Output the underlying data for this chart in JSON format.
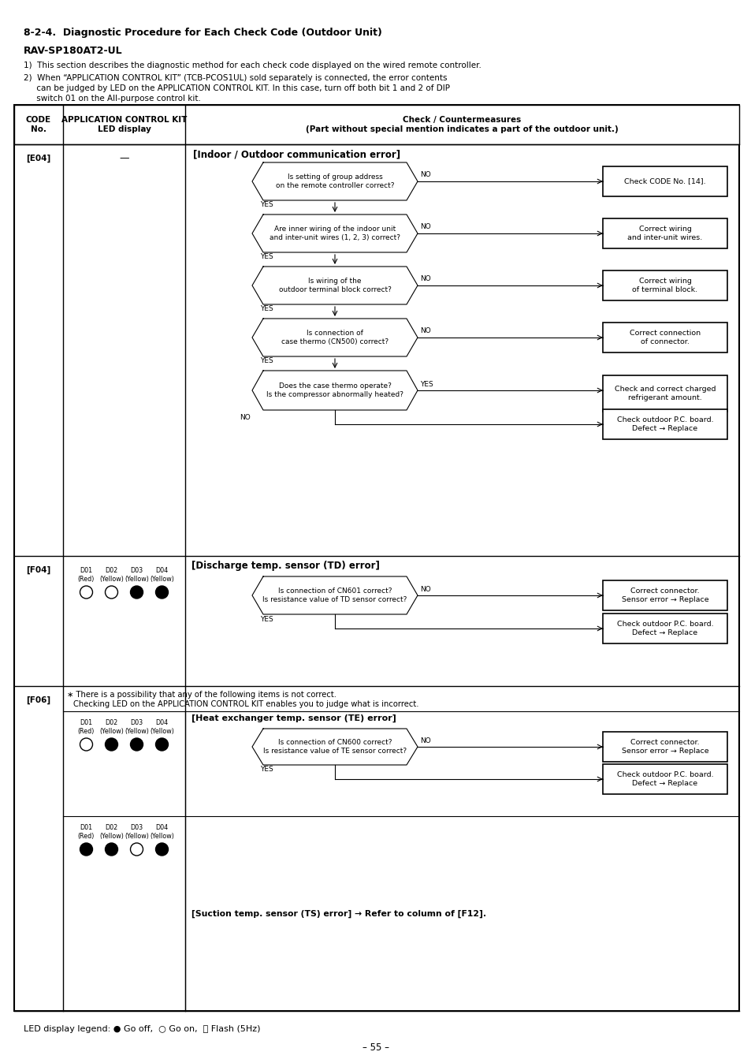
{
  "title": "8-2-4.  Diagnostic Procedure for Each Check Code (Outdoor Unit)",
  "subtitle": "RAV-SP180AT2-UL",
  "intro1": "1)  This section describes the diagnostic method for each check code displayed on the wired remote controller.",
  "intro2a": "2)  When “APPLICATION CONTROL KIT” (TCB-PCOS1UL) sold separately is connected, the error contents",
  "intro2b": "     can be judged by LED on the APPLICATION CONTROL KIT. In this case, turn off both bit 1 and 2 of DIP",
  "intro2c": "     switch 01 on the All-purpose control kit.",
  "footer": "LED display legend: ● Go off,  ○ Go on,  Ⓢ Flash (5Hz)",
  "page": "– 55 –",
  "bg_color": "#ffffff"
}
